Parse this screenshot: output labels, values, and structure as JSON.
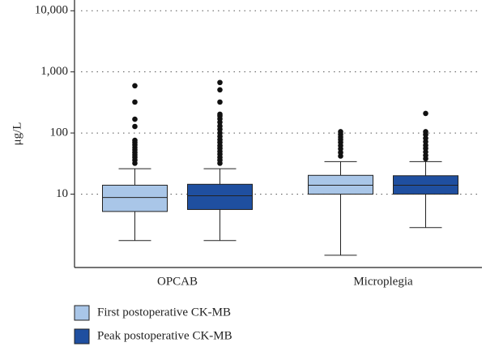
{
  "chart_data": {
    "type": "box",
    "ylabel": "μg/L",
    "log_scale": true,
    "grid": true,
    "categories": [
      "OPCAB",
      "Microplegia"
    ],
    "ylim": [
      0.63,
      15000
    ],
    "yticks": [
      {
        "value": 10,
        "label": "10"
      },
      {
        "value": 100,
        "label": "100"
      },
      {
        "value": 1000,
        "label": "1,000"
      },
      {
        "value": 10000,
        "label": "10,000"
      }
    ],
    "series": [
      {
        "name": "First postoperative CK-MB",
        "color": "#a9c6e8",
        "boxes": [
          {
            "low": 1.74,
            "q1": 5.2,
            "median": 8.8,
            "q3": 14,
            "high": 26,
            "outliers": [
              32,
              36,
              40,
              44,
              48,
              53,
              58,
              64,
              70,
              76,
              128,
              168,
              321,
              593
            ]
          },
          {
            "low": 1.0,
            "q1": 10,
            "median": 14,
            "q3": 20.3,
            "high": 34,
            "outliers": [
              42,
              48,
              55,
              62,
              70,
              78,
              86,
              95,
              105
            ]
          }
        ]
      },
      {
        "name": "Peak postoperative CK-MB",
        "color": "#1f4fa0",
        "boxes": [
          {
            "low": 1.74,
            "q1": 5.6,
            "median": 9.4,
            "q3": 14.5,
            "high": 26,
            "outliers": [
              32,
              36,
              40,
              45,
              50,
              56,
              62,
              70,
              78,
              88,
              100,
              115,
              130,
              150,
              170,
              190,
              203,
              321,
              509,
              671
            ]
          },
          {
            "low": 2.84,
            "q1": 10,
            "median": 14,
            "q3": 20,
            "high": 34,
            "outliers": [
              38,
              43,
              49,
              56,
              63,
              72,
              82,
              94,
              105,
              209
            ]
          }
        ]
      }
    ]
  }
}
